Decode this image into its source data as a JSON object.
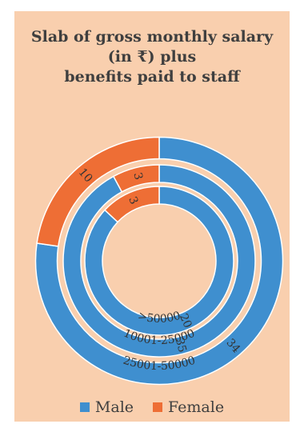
{
  "chart_data": {
    "type": "donut",
    "title_lines": [
      "Slab of gross monthly salary",
      "(in ₹) plus",
      "benefits paid to staff"
    ],
    "series": [
      {
        "name": "Male",
        "color": "#3f8fcf"
      },
      {
        "name": "Female",
        "color": "#ee6e35"
      }
    ],
    "rings": [
      {
        "label": "25001-50000",
        "values": {
          "Male": 34,
          "Female": 10
        }
      },
      {
        "label": "10001-25000",
        "values": {
          "Male": 35,
          "Female": 3
        }
      },
      {
        "label": ">50000",
        "values": {
          "Male": 20,
          "Female": 3
        }
      }
    ],
    "legend_position": "bottom"
  }
}
